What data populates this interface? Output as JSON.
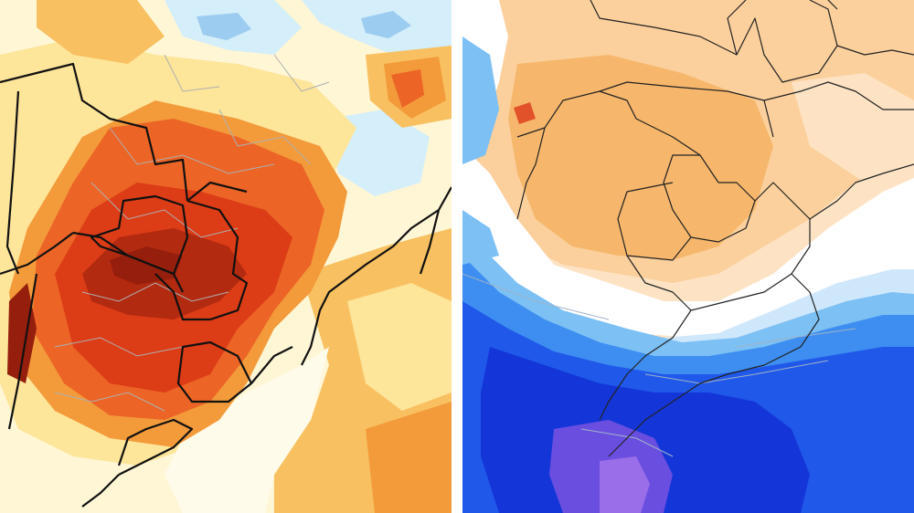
{
  "panels": [
    {
      "id": "left",
      "field": "temperature-anomaly-warm",
      "colors": {
        "base": "#fff6d6",
        "pale_blue": "#d4eefa",
        "light_blue": "#9cccf0",
        "blue": "#5fa3e6",
        "pale_yellow": "#fde59a",
        "light_orange": "#f8c060",
        "orange": "#f39a3a",
        "red_orange": "#ec6426",
        "red": "#dc3c16",
        "dark_red": "#b22a10",
        "deep_red": "#961e0c",
        "border": "#111111",
        "subdivision": "#b0b0b0"
      }
    },
    {
      "id": "right",
      "field": "temperature-anomaly-cold",
      "colors": {
        "pale_orange": "#fde3c4",
        "light_orange": "#fbd09c",
        "orange": "#f6b76c",
        "red_orange": "#e2522a",
        "white": "#ffffff",
        "pale_blue": "#cfe7fb",
        "light_blue": "#7cc0f4",
        "blue": "#3d8ef0",
        "royal_blue": "#2058ea",
        "deep_blue": "#1436d8",
        "purple": "#6a4ee0",
        "violet": "#9a6ee8",
        "border": "#222222",
        "subdivision": "#9fb3c8"
      }
    }
  ]
}
